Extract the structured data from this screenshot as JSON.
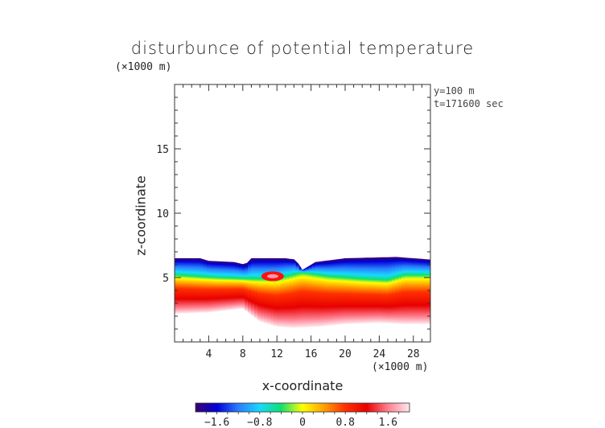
{
  "chart_data": {
    "type": "heatmap",
    "title": "disturbunce of potential temperature",
    "xlabel": "x-coordinate",
    "ylabel": "z-coordinate",
    "x_unit": "(×1000 m)",
    "z_unit": "(×1000 m)",
    "annotations": [
      "y=100  m",
      "t=171600 sec"
    ],
    "xlim": [
      0,
      30
    ],
    "ylim": [
      0,
      20
    ],
    "x_ticks": [
      4,
      8,
      12,
      16,
      20,
      24,
      28
    ],
    "y_ticks": [
      5,
      10,
      15
    ],
    "colorbar": {
      "range": [
        -2.0,
        2.0
      ],
      "tick_values": [
        -1.6,
        -0.8,
        0,
        0.8,
        1.6
      ],
      "tick_labels": [
        "−1.6",
        "−0.8",
        "0",
        "0.8",
        "1.6"
      ],
      "colors": [
        "#3a0070",
        "#0000d8",
        "#2a7cff",
        "#18d8ff",
        "#10e070",
        "#ffff00",
        "#ffa000",
        "#ff3000",
        "#e80000",
        "#ff8090",
        "#ffe8ee"
      ]
    },
    "layer_top_z": [
      [
        0,
        6.5
      ],
      [
        3,
        6.5
      ],
      [
        4,
        6.3
      ],
      [
        7,
        6.2
      ],
      [
        8.3,
        6.0
      ],
      [
        9,
        6.5
      ],
      [
        13,
        6.5
      ],
      [
        14.2,
        6.4
      ],
      [
        15,
        5.6
      ],
      [
        16.5,
        6.2
      ],
      [
        20,
        6.5
      ],
      [
        26,
        6.6
      ],
      [
        30,
        6.4
      ]
    ],
    "isotherm_zero_z": [
      [
        0,
        5.2
      ],
      [
        5,
        5.0
      ],
      [
        9,
        4.9
      ],
      [
        12,
        4.9
      ],
      [
        15,
        5.4
      ],
      [
        18,
        5.1
      ],
      [
        22,
        4.9
      ],
      [
        25,
        4.8
      ],
      [
        27,
        5.2
      ],
      [
        30,
        5.2
      ]
    ],
    "layer_bottom_z": [
      [
        0,
        2.2
      ],
      [
        4,
        2.3
      ],
      [
        8,
        2.6
      ],
      [
        10,
        1.6
      ],
      [
        12,
        1.2
      ],
      [
        14,
        1.1
      ],
      [
        17,
        1.2
      ],
      [
        20,
        1.4
      ],
      [
        24,
        1.5
      ],
      [
        27,
        1.4
      ],
      [
        30,
        1.4
      ]
    ],
    "peak_spot": {
      "x": 11.5,
      "z": 5.1
    }
  }
}
